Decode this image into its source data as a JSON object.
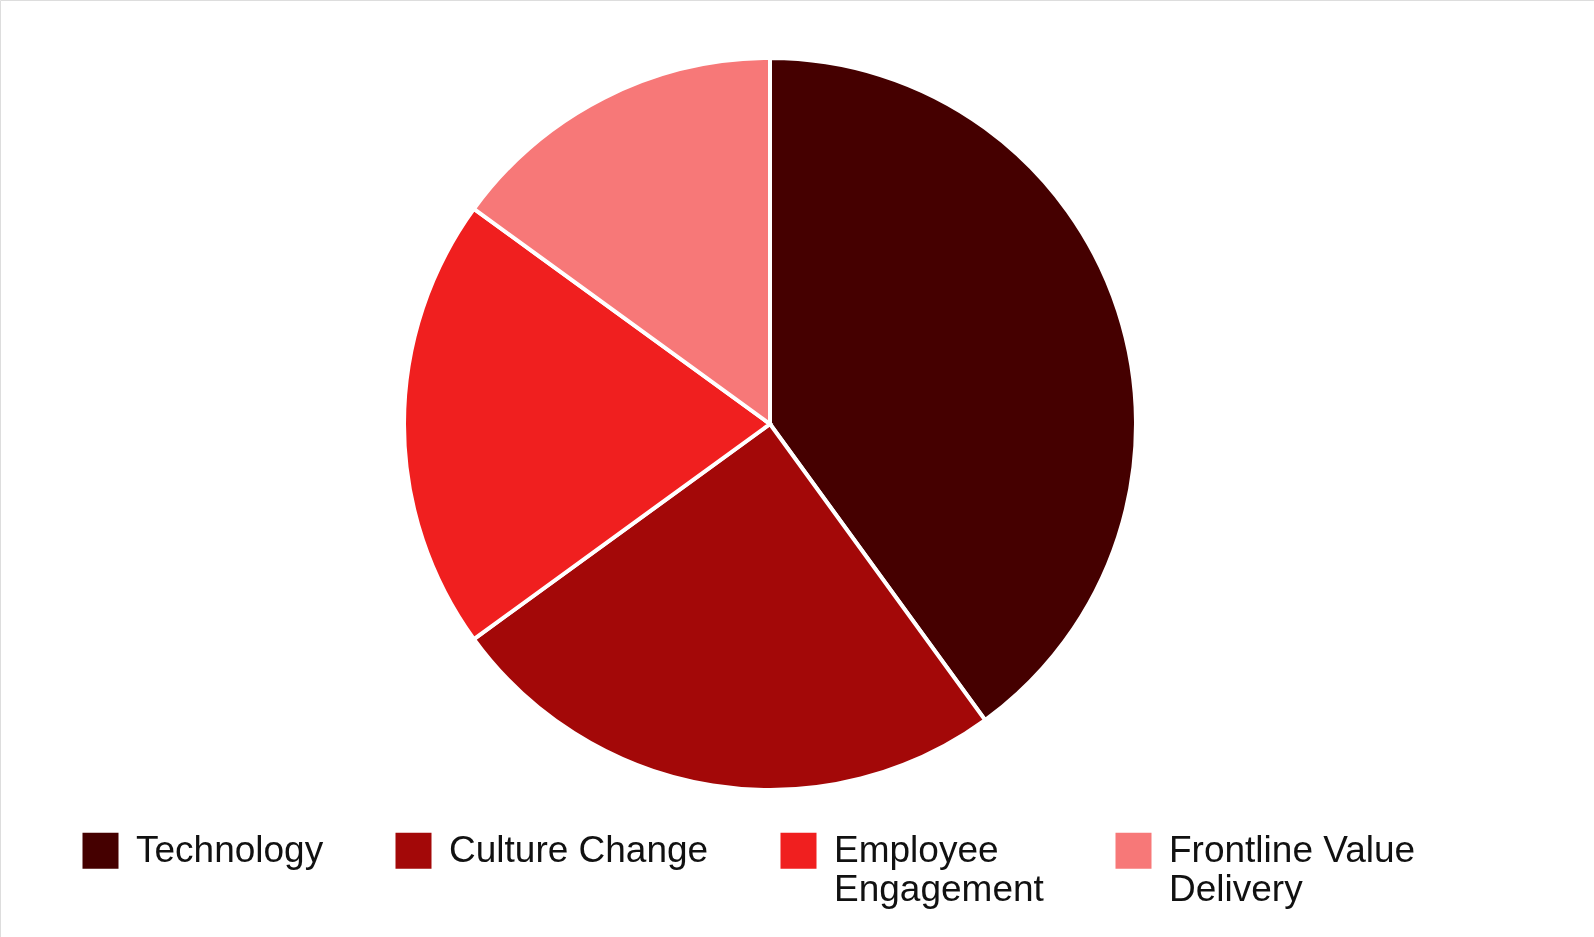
{
  "chart_data": {
    "type": "pie",
    "categories": [
      "Technology",
      "Culture Change",
      "Employee Engagement",
      "Frontline Value Delivery"
    ],
    "values": [
      40,
      25,
      20,
      15
    ],
    "colors": [
      "#450000",
      "#a30808",
      "#f01f1f",
      "#f77878"
    ],
    "legend": "bottom"
  }
}
